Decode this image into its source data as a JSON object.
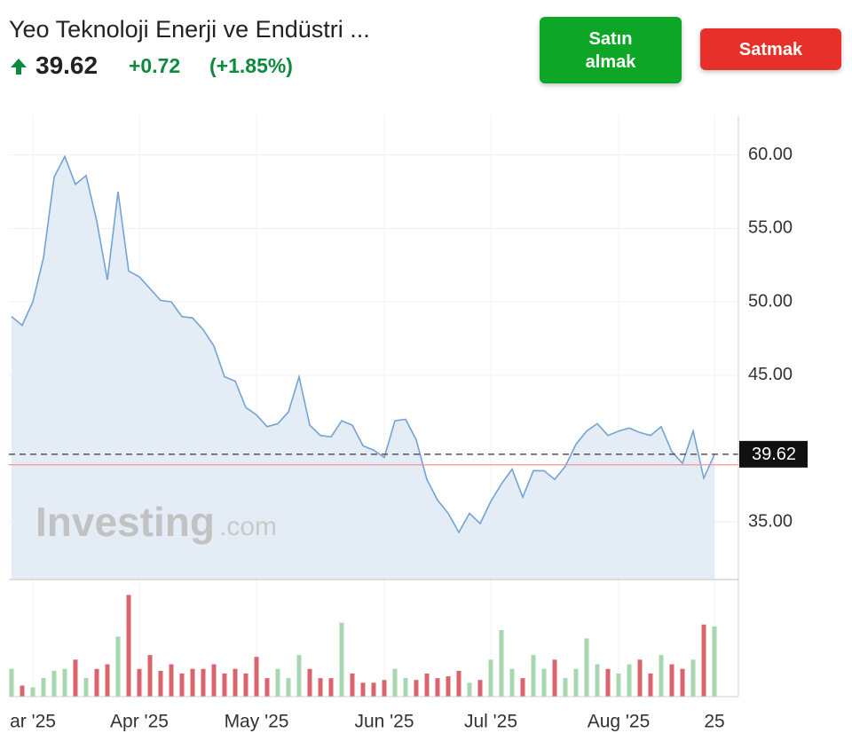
{
  "header": {
    "title": "Yeo Teknoloji Enerji ve Endüstri ...",
    "price": "39.62",
    "change": "+0.72",
    "change_pct": "(+1.85%)"
  },
  "buttons": {
    "buy": "Satın almak",
    "sell": "Satmak"
  },
  "watermark": {
    "brand": "Investing",
    "suffix": ".com"
  },
  "chart_data": [
    {
      "type": "area",
      "categories": [
        null,
        null,
        "ar '25",
        null,
        null,
        null,
        null,
        null,
        null,
        null,
        null,
        null,
        "Apr '25",
        null,
        null,
        null,
        null,
        null,
        null,
        null,
        null,
        null,
        null,
        "May '25",
        null,
        null,
        null,
        null,
        null,
        null,
        null,
        null,
        null,
        null,
        null,
        "Jun '25",
        null,
        null,
        null,
        null,
        null,
        null,
        null,
        null,
        null,
        "Jul '25",
        null,
        null,
        null,
        null,
        null,
        null,
        null,
        null,
        null,
        null,
        null,
        "Aug '25",
        null,
        null,
        null,
        null,
        null,
        null,
        null,
        null,
        "25"
      ],
      "values": [
        49.0,
        48.4,
        50.0,
        53.0,
        58.5,
        59.9,
        58.0,
        58.6,
        55.5,
        51.5,
        57.5,
        52.1,
        51.7,
        50.9,
        50.1,
        50.0,
        49.0,
        48.9,
        48.1,
        47.0,
        44.9,
        44.6,
        42.8,
        42.3,
        41.5,
        41.7,
        42.5,
        44.9,
        41.6,
        40.9,
        40.8,
        41.9,
        41.6,
        40.2,
        39.9,
        39.4,
        41.9,
        42.0,
        40.6,
        37.9,
        36.5,
        35.6,
        34.3,
        35.6,
        34.9,
        36.4,
        37.6,
        38.6,
        36.7,
        38.5,
        38.5,
        37.9,
        38.8,
        40.3,
        41.2,
        41.7,
        40.9,
        41.2,
        41.4,
        41.1,
        40.9,
        41.5,
        39.8,
        39.0,
        41.2,
        38.0,
        39.62
      ],
      "color": "#72a3d4",
      "area_color": "#e4edf5",
      "ylim": [
        31.15,
        62.7
      ],
      "yticks": [
        {
          "value": 35,
          "label": "35.00"
        },
        {
          "value": 45,
          "label": "45.00"
        },
        {
          "value": 50,
          "label": "50.00"
        },
        {
          "value": 55,
          "label": "55.00"
        },
        {
          "value": 60,
          "label": "60.00"
        }
      ],
      "last_value": {
        "value": 39.62,
        "label": "39.62"
      },
      "previous_close": 38.9,
      "grid": true
    },
    {
      "type": "bar",
      "values": [
        30,
        12,
        10,
        20,
        28,
        30,
        40,
        20,
        30,
        35,
        65,
        110,
        30,
        45,
        28,
        35,
        25,
        30,
        30,
        35,
        25,
        30,
        25,
        43,
        20,
        30,
        20,
        45,
        30,
        20,
        20,
        80,
        25,
        15,
        15,
        18,
        30,
        20,
        18,
        25,
        20,
        22,
        28,
        15,
        18,
        40,
        72,
        30,
        20,
        45,
        30,
        40,
        20,
        30,
        63,
        35,
        30,
        25,
        35,
        40,
        25,
        45,
        35,
        30,
        40,
        78,
        76
      ],
      "up_color": "#a6d7b0",
      "down_color": "#d9646e",
      "ylim": [
        0,
        120
      ]
    }
  ]
}
